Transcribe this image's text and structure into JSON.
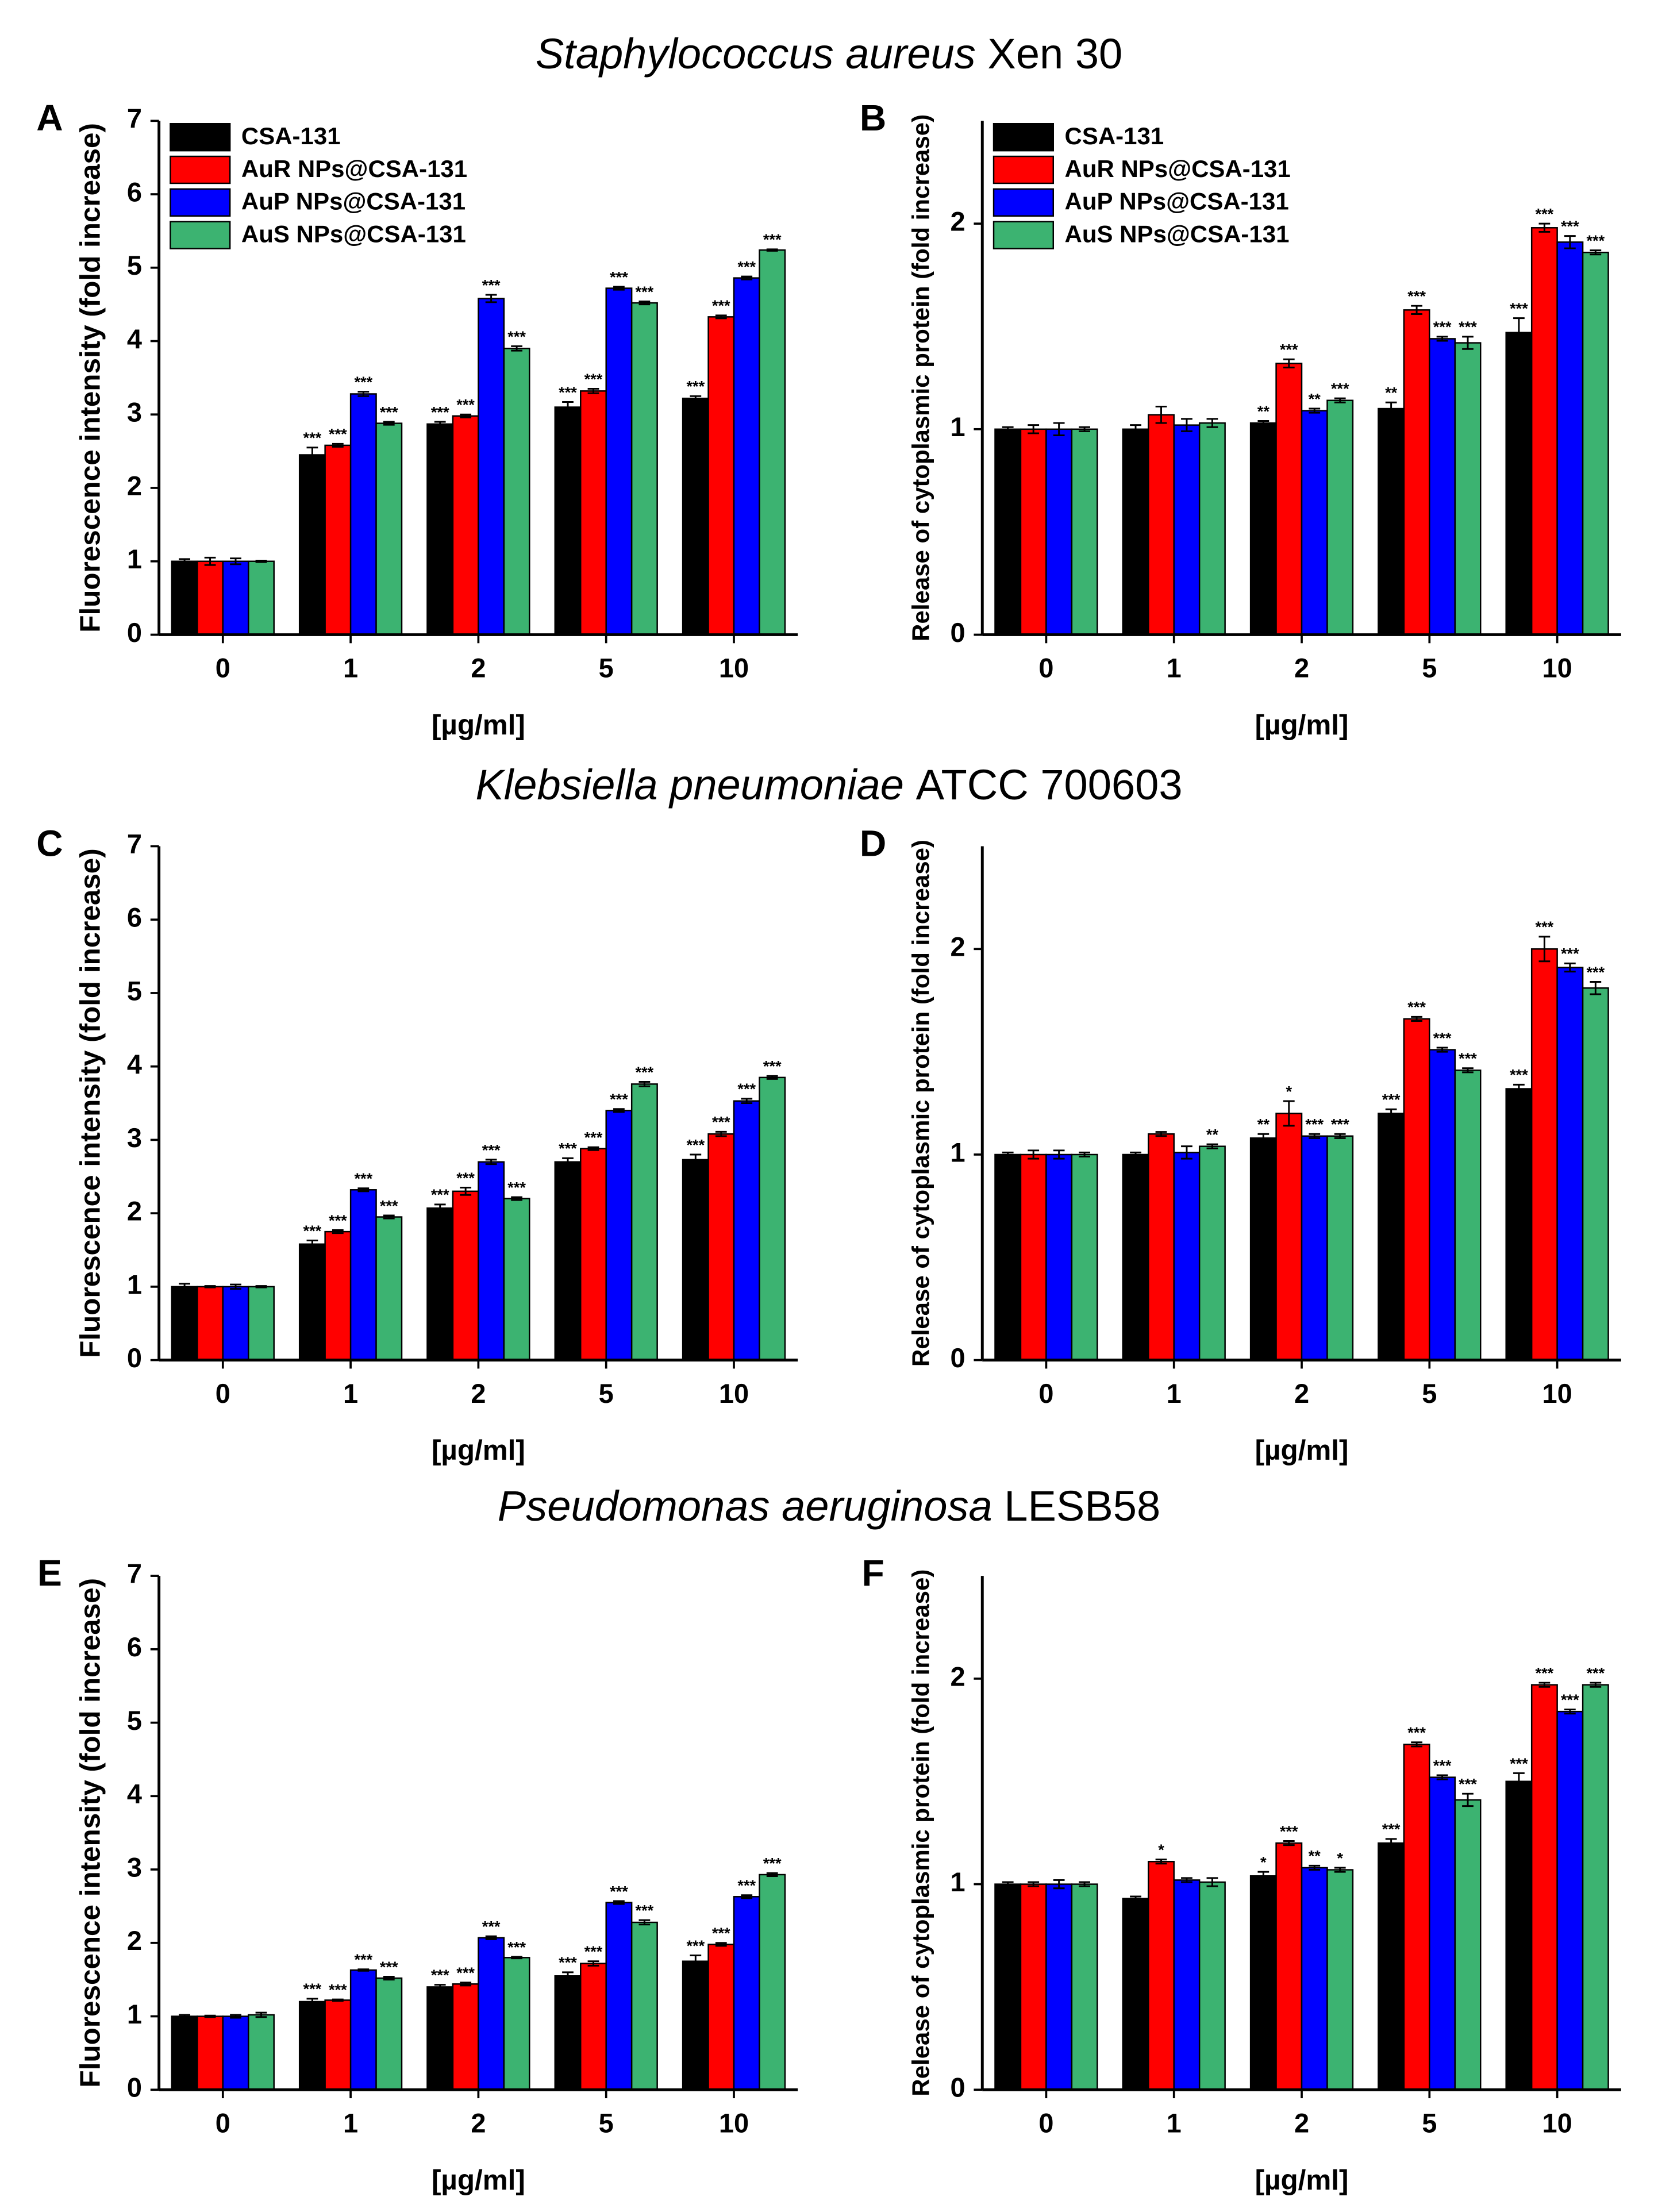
{
  "panel_groups": [
    {
      "species": "Staphylococcus aureus",
      "strain": "Xen 30"
    },
    {
      "species": "Klebsiella pneumoniae",
      "strain": "ATCC 700603"
    },
    {
      "species": "Pseudomonas aeruginosa",
      "strain": "LESB58"
    }
  ],
  "chart_data": [
    {
      "type": "bar",
      "panel": "A",
      "y_label": "Fluorescence intensity (fold increase)",
      "x_label": "[µg/ml]",
      "categories": [
        "0",
        "1",
        "2",
        "5",
        "10"
      ],
      "ylim": [
        0,
        7
      ],
      "yticks": [
        0,
        1,
        2,
        3,
        4,
        5,
        6,
        7
      ],
      "legend": "upper left",
      "series": [
        {
          "name": "CSA-131",
          "color": "#000000",
          "values": [
            1.0,
            2.45,
            2.87,
            3.1,
            3.22
          ],
          "errors": [
            0.03,
            0.1,
            0.03,
            0.07,
            0.03
          ],
          "annotations": [
            null,
            "***",
            "***",
            "***",
            "***"
          ]
        },
        {
          "name": "AuR NPs@CSA-131",
          "color": "#ff0000",
          "values": [
            1.0,
            2.58,
            2.98,
            3.32,
            4.33
          ],
          "errors": [
            0.05,
            0.02,
            0.02,
            0.03,
            0.02
          ],
          "annotations": [
            null,
            "***",
            "***",
            "***",
            "***"
          ]
        },
        {
          "name": "AuP NPs@CSA-131",
          "color": "#0000ff",
          "values": [
            1.0,
            3.28,
            4.58,
            4.72,
            4.86
          ],
          "errors": [
            0.04,
            0.03,
            0.05,
            0.02,
            0.02
          ],
          "annotations": [
            null,
            "***",
            "***",
            "***",
            "***"
          ]
        },
        {
          "name": "AuS NPs@CSA-131",
          "color": "#3cb371",
          "values": [
            1.0,
            2.88,
            3.9,
            4.52,
            5.24
          ],
          "errors": [
            0.01,
            0.02,
            0.03,
            0.02,
            0.01
          ],
          "annotations": [
            null,
            "***",
            "***",
            "***",
            "***"
          ]
        }
      ]
    },
    {
      "type": "bar",
      "panel": "B",
      "y_label": "Release of cytoplasmic protein (fold increase)",
      "x_label": "[µg/ml]",
      "categories": [
        "0",
        "1",
        "2",
        "5",
        "10"
      ],
      "ylim": [
        0,
        2.5
      ],
      "yticks": [
        0,
        1,
        2
      ],
      "legend": "upper left",
      "series": [
        {
          "name": "CSA-131",
          "color": "#000000",
          "values": [
            1.0,
            1.0,
            1.03,
            1.1,
            1.47
          ],
          "errors": [
            0.01,
            0.02,
            0.01,
            0.03,
            0.07
          ],
          "annotations": [
            null,
            null,
            "**",
            "**",
            "***"
          ]
        },
        {
          "name": "AuR NPs@CSA-131",
          "color": "#ff0000",
          "values": [
            1.0,
            1.07,
            1.32,
            1.58,
            1.98
          ],
          "errors": [
            0.02,
            0.04,
            0.02,
            0.02,
            0.02
          ],
          "annotations": [
            null,
            null,
            "***",
            "***",
            "***"
          ]
        },
        {
          "name": "AuP NPs@CSA-131",
          "color": "#0000ff",
          "values": [
            1.0,
            1.02,
            1.09,
            1.44,
            1.91
          ],
          "errors": [
            0.03,
            0.03,
            0.01,
            0.01,
            0.03
          ],
          "annotations": [
            null,
            null,
            "**",
            "***",
            "***"
          ]
        },
        {
          "name": "AuS NPs@CSA-131",
          "color": "#3cb371",
          "values": [
            1.0,
            1.03,
            1.14,
            1.42,
            1.86
          ],
          "errors": [
            0.01,
            0.02,
            0.01,
            0.03,
            0.01
          ],
          "annotations": [
            null,
            null,
            "***",
            "***",
            "***"
          ]
        }
      ]
    },
    {
      "type": "bar",
      "panel": "C",
      "y_label": "Fluorescence intensity (fold increase)",
      "x_label": "[µg/ml]",
      "categories": [
        "0",
        "1",
        "2",
        "5",
        "10"
      ],
      "ylim": [
        0,
        7
      ],
      "yticks": [
        0,
        1,
        2,
        3,
        4,
        5,
        6,
        7
      ],
      "series": [
        {
          "color": "#000000",
          "values": [
            1.0,
            1.58,
            2.07,
            2.7,
            2.73
          ],
          "errors": [
            0.04,
            0.05,
            0.05,
            0.05,
            0.07
          ],
          "annotations": [
            null,
            "***",
            "***",
            "***",
            "***"
          ]
        },
        {
          "color": "#ff0000",
          "values": [
            1.0,
            1.75,
            2.3,
            2.88,
            3.08
          ],
          "errors": [
            0.01,
            0.02,
            0.05,
            0.02,
            0.03
          ],
          "annotations": [
            null,
            "***",
            "***",
            "***",
            "***"
          ]
        },
        {
          "color": "#0000ff",
          "values": [
            1.0,
            2.32,
            2.7,
            3.4,
            3.53
          ],
          "errors": [
            0.03,
            0.02,
            0.03,
            0.02,
            0.03
          ],
          "annotations": [
            null,
            "***",
            "***",
            "***",
            "***"
          ]
        },
        {
          "color": "#3cb371",
          "values": [
            1.0,
            1.95,
            2.2,
            3.76,
            3.85
          ],
          "errors": [
            0.01,
            0.02,
            0.02,
            0.03,
            0.02
          ],
          "annotations": [
            null,
            "***",
            "***",
            "***",
            "***"
          ]
        }
      ]
    },
    {
      "type": "bar",
      "panel": "D",
      "y_label": "Release of cytoplasmic protein (fold increase)",
      "x_label": "[µg/ml]",
      "categories": [
        "0",
        "1",
        "2",
        "5",
        "10"
      ],
      "ylim": [
        0,
        2.5
      ],
      "yticks": [
        0,
        1,
        2
      ],
      "series": [
        {
          "color": "#000000",
          "values": [
            1.0,
            1.0,
            1.08,
            1.2,
            1.32
          ],
          "errors": [
            0.01,
            0.01,
            0.02,
            0.02,
            0.02
          ],
          "annotations": [
            null,
            null,
            "**",
            "***",
            "***"
          ]
        },
        {
          "color": "#ff0000",
          "values": [
            1.0,
            1.1,
            1.2,
            1.66,
            2.0
          ],
          "errors": [
            0.02,
            0.01,
            0.06,
            0.01,
            0.06
          ],
          "annotations": [
            null,
            null,
            "*",
            "***",
            "***"
          ]
        },
        {
          "color": "#0000ff",
          "values": [
            1.0,
            1.01,
            1.09,
            1.51,
            1.91
          ],
          "errors": [
            0.02,
            0.03,
            0.01,
            0.01,
            0.02
          ],
          "annotations": [
            null,
            null,
            "***",
            "***",
            "***"
          ]
        },
        {
          "color": "#3cb371",
          "values": [
            1.0,
            1.04,
            1.09,
            1.41,
            1.81
          ],
          "errors": [
            0.01,
            0.01,
            0.01,
            0.01,
            0.03
          ],
          "annotations": [
            null,
            "**",
            "***",
            "***",
            "***"
          ]
        }
      ]
    },
    {
      "type": "bar",
      "panel": "E",
      "y_label": "Fluorescence intensity (fold increase)",
      "x_label": "[µg/ml]",
      "categories": [
        "0",
        "1",
        "2",
        "5",
        "10"
      ],
      "ylim": [
        0,
        7
      ],
      "yticks": [
        0,
        1,
        2,
        3,
        4,
        5,
        6,
        7
      ],
      "series": [
        {
          "color": "#000000",
          "values": [
            1.0,
            1.2,
            1.4,
            1.55,
            1.75
          ],
          "errors": [
            0.02,
            0.04,
            0.03,
            0.05,
            0.08
          ],
          "annotations": [
            null,
            "***",
            "***",
            "***",
            "***"
          ]
        },
        {
          "color": "#ff0000",
          "values": [
            1.0,
            1.22,
            1.44,
            1.72,
            1.98
          ],
          "errors": [
            0.01,
            0.01,
            0.02,
            0.03,
            0.02
          ],
          "annotations": [
            null,
            "***",
            "***",
            "***",
            "***"
          ]
        },
        {
          "color": "#0000ff",
          "values": [
            1.0,
            1.63,
            2.07,
            2.55,
            2.63
          ],
          "errors": [
            0.02,
            0.01,
            0.02,
            0.02,
            0.02
          ],
          "annotations": [
            null,
            "***",
            "***",
            "***",
            "***"
          ]
        },
        {
          "color": "#3cb371",
          "values": [
            1.02,
            1.52,
            1.8,
            2.28,
            2.93
          ],
          "errors": [
            0.03,
            0.02,
            0.01,
            0.03,
            0.02
          ],
          "annotations": [
            null,
            "***",
            "***",
            "***",
            "***"
          ]
        }
      ]
    },
    {
      "type": "bar",
      "panel": "F",
      "y_label": "Release of cytoplasmic protein (fold increase)",
      "x_label": "[µg/ml]",
      "categories": [
        "0",
        "1",
        "2",
        "5",
        "10"
      ],
      "ylim": [
        0,
        2.5
      ],
      "yticks": [
        0,
        1,
        2
      ],
      "series": [
        {
          "color": "#000000",
          "values": [
            1.0,
            0.93,
            1.04,
            1.2,
            1.5
          ],
          "errors": [
            0.01,
            0.01,
            0.02,
            0.02,
            0.04
          ],
          "annotations": [
            null,
            null,
            "*",
            "***",
            "***"
          ]
        },
        {
          "color": "#ff0000",
          "values": [
            1.0,
            1.11,
            1.2,
            1.68,
            1.97
          ],
          "errors": [
            0.01,
            0.01,
            0.01,
            0.01,
            0.01
          ],
          "annotations": [
            null,
            "*",
            "***",
            "***",
            "***"
          ]
        },
        {
          "color": "#0000ff",
          "values": [
            1.0,
            1.02,
            1.08,
            1.52,
            1.84
          ],
          "errors": [
            0.02,
            0.01,
            0.01,
            0.01,
            0.01
          ],
          "annotations": [
            null,
            null,
            "**",
            "***",
            "***"
          ]
        },
        {
          "color": "#3cb371",
          "values": [
            1.0,
            1.01,
            1.07,
            1.41,
            1.97
          ],
          "errors": [
            0.01,
            0.02,
            0.01,
            0.03,
            0.01
          ],
          "annotations": [
            null,
            null,
            "*",
            "***",
            "***"
          ]
        }
      ]
    }
  ]
}
